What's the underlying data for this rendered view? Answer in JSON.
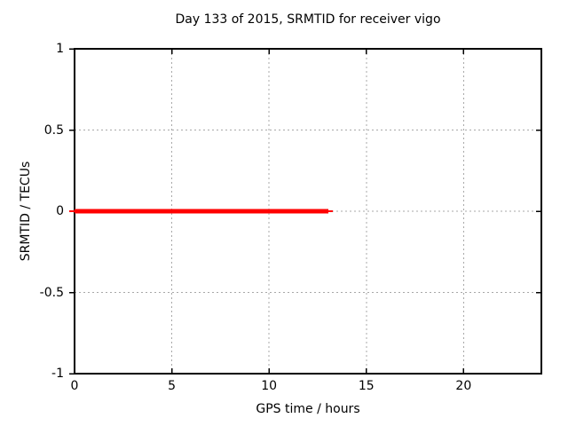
{
  "chart_data": {
    "type": "line",
    "title": "Day 133 of 2015, SRMTID for receiver vigo",
    "xlabel": "GPS time / hours",
    "ylabel": "SRMTID / TECUs",
    "xlim": [
      0,
      24
    ],
    "ylim": [
      -1,
      1
    ],
    "xticks": [
      0,
      5,
      10,
      15,
      20
    ],
    "yticks": [
      1,
      0.5,
      0,
      -0.5,
      -1
    ],
    "grid": true,
    "legend": "none",
    "background_color": "#ffffff",
    "grid_color": "#a8a8a8",
    "axis_color": "#000000",
    "series": [
      {
        "name": "SRMTID",
        "color": "#ff0000",
        "linewidth": 5,
        "x": [
          0,
          13.05
        ],
        "y": [
          0,
          0
        ]
      }
    ]
  }
}
